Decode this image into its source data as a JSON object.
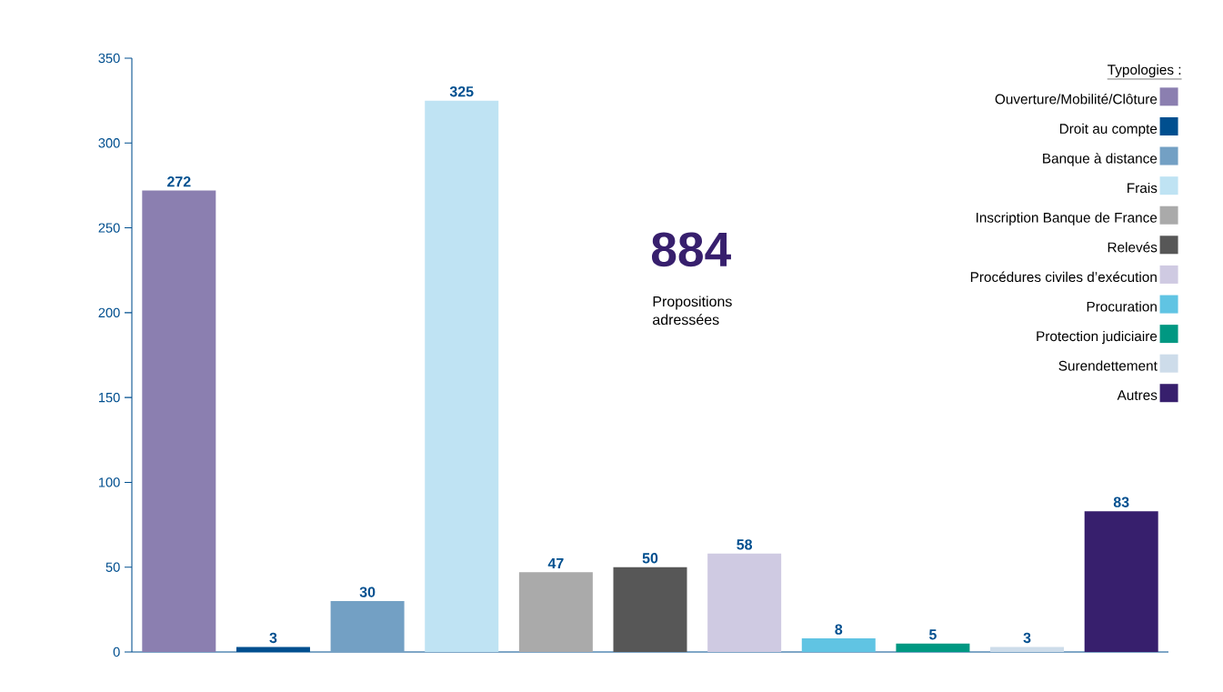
{
  "chart_data": {
    "type": "bar",
    "legend_title": "Typologies :",
    "categories": [
      null,
      null,
      null,
      null,
      null,
      null,
      null,
      null,
      null,
      null,
      null
    ],
    "series": [
      {
        "name": "Ouverture/Mobilité/Clôture",
        "color": "#8b7fb0",
        "values": [
          272,
          null,
          null,
          null,
          null,
          null,
          null,
          null,
          null,
          null,
          null
        ]
      },
      {
        "name": "Droit au compte",
        "color": "#004f8f",
        "values": [
          null,
          3,
          null,
          null,
          null,
          null,
          null,
          null,
          null,
          null,
          null
        ]
      },
      {
        "name": "Banque à distance",
        "color": "#73a0c4",
        "values": [
          null,
          null,
          30,
          null,
          null,
          null,
          null,
          null,
          null,
          null,
          null
        ]
      },
      {
        "name": "Frais",
        "color": "#bfe3f3",
        "values": [
          null,
          null,
          null,
          325,
          null,
          null,
          null,
          null,
          null,
          null,
          null
        ]
      },
      {
        "name": "Inscription Banque de France",
        "color": "#aaaaaa",
        "values": [
          null,
          null,
          null,
          null,
          47,
          null,
          null,
          null,
          null,
          null,
          null
        ]
      },
      {
        "name": "Relevés",
        "color": "#575757",
        "values": [
          null,
          null,
          null,
          null,
          null,
          50,
          null,
          null,
          null,
          null,
          null
        ]
      },
      {
        "name": "Procédures civiles d’exécution",
        "color": "#cfcae2",
        "values": [
          null,
          null,
          null,
          null,
          null,
          null,
          58,
          null,
          null,
          null,
          null
        ]
      },
      {
        "name": "Procuration",
        "color": "#60c4e3",
        "values": [
          null,
          null,
          null,
          null,
          null,
          null,
          null,
          8,
          null,
          null,
          null
        ]
      },
      {
        "name": "Protection judiciaire",
        "color": "#009882",
        "values": [
          null,
          null,
          null,
          null,
          null,
          null,
          null,
          null,
          5,
          null,
          null
        ]
      },
      {
        "name": "Surendettement",
        "color": "#cddcea",
        "values": [
          null,
          null,
          null,
          null,
          null,
          null,
          null,
          null,
          null,
          3,
          null
        ]
      },
      {
        "name": "Autres",
        "color": "#371f6d",
        "values": [
          null,
          null,
          null,
          null,
          null,
          null,
          null,
          null,
          null,
          null,
          83
        ]
      }
    ],
    "ylim": [
      0,
      350
    ],
    "yticks": [
      0,
      50,
      100,
      150,
      200,
      250,
      300,
      350
    ],
    "data_labels": true,
    "grid": false,
    "legend": "top right",
    "tick_labels": "y",
    "annotations": [
      "884",
      "Propositions adressées"
    ]
  }
}
